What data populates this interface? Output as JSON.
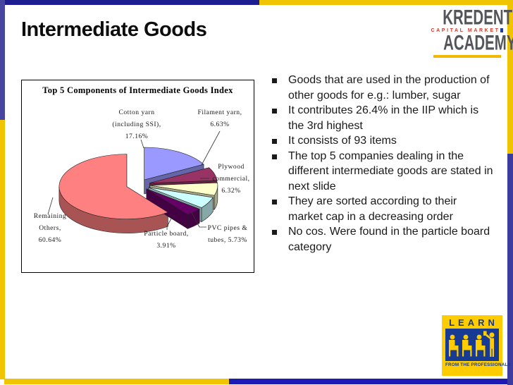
{
  "slide": {
    "title": "Intermediate Goods",
    "bullets": [
      "Goods that are used in the production of other goods for e.g.: lumber, sugar",
      "It contributes 26.4% in the IIP which is the 3rd highest",
      "It consists of 93 items",
      "The top 5 companies dealing in the different intermediate goods are stated in next slide",
      "They are sorted according to their market cap in a decreasing order",
      "No cos. Were found in the particle board category"
    ]
  },
  "chart_data": {
    "type": "pie",
    "style": "3d-exploded",
    "title": "Top 5 Components of Intermediate Goods Index",
    "labels": [
      "Cotton yarn (including SSI)",
      "Filament yarn",
      "Plywood commercial",
      "PVC pipes & tubes",
      "Particle board",
      "Remaining Others"
    ],
    "values": [
      17.16,
      6.63,
      6.32,
      5.73,
      3.91,
      60.64
    ],
    "colors": [
      "#9999FF",
      "#993366",
      "#FFFFCC",
      "#CCFFFF",
      "#660066",
      "#FF8080"
    ],
    "label_lines": [
      [
        "Cotton yarn",
        "(including SSI),",
        "17.16%"
      ],
      [
        "Filament yarn,",
        "6.63%"
      ],
      [
        "Plywood",
        "commercial,",
        "6.32%"
      ],
      [
        "PVC pipes &",
        "tubes, 5.73%"
      ],
      [
        "Particle board,",
        "3.91%"
      ],
      [
        "Remaining",
        "Others,",
        "60.64%"
      ]
    ],
    "start_angle_deg": 0,
    "direction": "clockwise",
    "legend": "none"
  },
  "logos": {
    "kredent": {
      "name": "KREDENT",
      "tagline": "CAPITAL MARKET",
      "sub": "ACADEMY"
    },
    "learn": {
      "title": "LEARN",
      "tagline": "FROM THE PROFESSIONALS"
    }
  },
  "frame": {
    "navy": "#1E1E91",
    "gold": "#F0C400",
    "indigo_left": "#4646A0",
    "indigo_right": "#3C3CA0",
    "blue_bottom": "#1C1CB4"
  }
}
